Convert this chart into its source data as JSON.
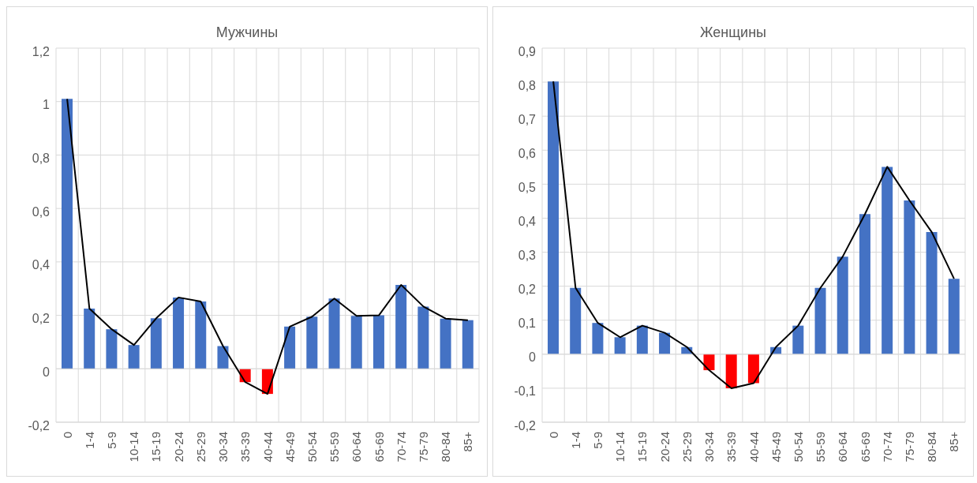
{
  "chart_data": [
    {
      "type": "bar",
      "title": "Мужчины",
      "categories": [
        "0",
        "1-4",
        "5-9",
        "10-14",
        "15-19",
        "20-24",
        "25-29",
        "30-34",
        "35-39",
        "40-44",
        "45-49",
        "50-54",
        "55-59",
        "60-64",
        "65-69",
        "70-74",
        "75-79",
        "80-84",
        "85+"
      ],
      "series": [
        {
          "color": "#4472c4",
          "colors": [
            "#4472c4",
            "#4472c4",
            "#4472c4",
            "#4472c4",
            "#4472c4",
            "#4472c4",
            "#4472c4",
            "#4472c4",
            "#ff0000",
            "#ff0000",
            "#4472c4",
            "#4472c4",
            "#4472c4",
            "#4472c4",
            "#4472c4",
            "#4472c4",
            "#4472c4",
            "#4472c4",
            "#4472c4"
          ],
          "values": [
            1.01,
            0.225,
            0.148,
            0.089,
            0.189,
            0.267,
            0.252,
            0.085,
            -0.05,
            -0.094,
            0.158,
            0.195,
            0.263,
            0.198,
            0.2,
            0.314,
            0.233,
            0.188,
            0.182
          ]
        },
        {
          "type": "line",
          "color": "#000000",
          "values": [
            1.01,
            0.225,
            0.148,
            0.089,
            0.189,
            0.267,
            0.252,
            0.085,
            -0.05,
            -0.094,
            0.158,
            0.195,
            0.263,
            0.198,
            0.2,
            0.314,
            0.233,
            0.188,
            0.182
          ]
        }
      ],
      "ylim": [
        -0.2,
        1.2
      ],
      "yticks": [
        {
          "value": -0.2,
          "label": "-0,2"
        },
        {
          "value": 0,
          "label": "0"
        },
        {
          "value": 0.2,
          "label": "0,2"
        },
        {
          "value": 0.4,
          "label": "0,4"
        },
        {
          "value": 0.6,
          "label": "0,6"
        },
        {
          "value": 0.8,
          "label": "0,8"
        },
        {
          "value": 1,
          "label": "1"
        },
        {
          "value": 1.2,
          "label": "1,2"
        }
      ],
      "grid": true,
      "legend": false,
      "marker": "none",
      "line_style": "solid"
    },
    {
      "type": "bar",
      "title": "Женщины",
      "categories": [
        "0",
        "1-4",
        "5-9",
        "10-14",
        "15-19",
        "20-24",
        "25-29",
        "30-34",
        "35-39",
        "40-44",
        "45-49",
        "50-54",
        "55-59",
        "60-64",
        "65-69",
        "70-74",
        "75-79",
        "80-84",
        "85+"
      ],
      "series": [
        {
          "color": "#4472c4",
          "colors": [
            "#4472c4",
            "#4472c4",
            "#4472c4",
            "#4472c4",
            "#4472c4",
            "#4472c4",
            "#4472c4",
            "#ff0000",
            "#ff0000",
            "#ff0000",
            "#4472c4",
            "#4472c4",
            "#4472c4",
            "#4472c4",
            "#4472c4",
            "#4472c4",
            "#4472c4",
            "#4472c4",
            "#4472c4"
          ],
          "values": [
            0.802,
            0.195,
            0.092,
            0.05,
            0.084,
            0.063,
            0.021,
            -0.047,
            -0.1,
            -0.085,
            0.021,
            0.084,
            0.195,
            0.287,
            0.412,
            0.551,
            0.452,
            0.359,
            0.222
          ]
        },
        {
          "type": "line",
          "color": "#000000",
          "values": [
            0.802,
            0.195,
            0.092,
            0.05,
            0.084,
            0.063,
            0.021,
            -0.047,
            -0.1,
            -0.085,
            0.021,
            0.084,
            0.195,
            0.287,
            0.412,
            0.551,
            0.452,
            0.359,
            0.222
          ]
        }
      ],
      "ylim": [
        -0.2,
        0.9
      ],
      "yticks": [
        {
          "value": -0.2,
          "label": "-0,2"
        },
        {
          "value": -0.1,
          "label": "-0,1"
        },
        {
          "value": 0,
          "label": "0"
        },
        {
          "value": 0.1,
          "label": "0,1"
        },
        {
          "value": 0.2,
          "label": "0,2"
        },
        {
          "value": 0.3,
          "label": "0,3"
        },
        {
          "value": 0.4,
          "label": "0,4"
        },
        {
          "value": 0.5,
          "label": "0,5"
        },
        {
          "value": 0.6,
          "label": "0,6"
        },
        {
          "value": 0.7,
          "label": "0,7"
        },
        {
          "value": 0.8,
          "label": "0,8"
        },
        {
          "value": 0.9,
          "label": "0,9"
        }
      ],
      "grid": true,
      "legend": false,
      "marker": "none",
      "line_style": "solid"
    }
  ]
}
